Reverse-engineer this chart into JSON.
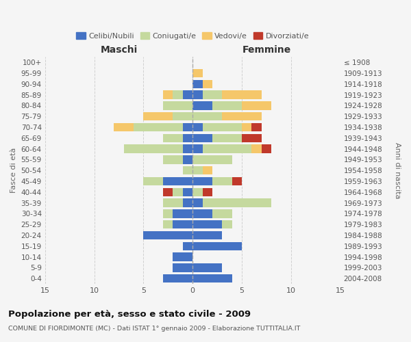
{
  "age_groups": [
    "0-4",
    "5-9",
    "10-14",
    "15-19",
    "20-24",
    "25-29",
    "30-34",
    "35-39",
    "40-44",
    "45-49",
    "50-54",
    "55-59",
    "60-64",
    "65-69",
    "70-74",
    "75-79",
    "80-84",
    "85-89",
    "90-94",
    "95-99",
    "100+"
  ],
  "birth_years": [
    "2004-2008",
    "1999-2003",
    "1994-1998",
    "1989-1993",
    "1984-1988",
    "1979-1983",
    "1974-1978",
    "1969-1973",
    "1964-1968",
    "1959-1963",
    "1954-1958",
    "1949-1953",
    "1944-1948",
    "1939-1943",
    "1934-1938",
    "1929-1933",
    "1924-1928",
    "1919-1923",
    "1914-1918",
    "1909-1913",
    "≤ 1908"
  ],
  "colors": {
    "celibi": "#4472c4",
    "coniugati": "#c5d99e",
    "vedovi": "#f5c76a",
    "divorziati": "#c0392b"
  },
  "males": {
    "celibi": [
      3,
      2,
      2,
      1,
      5,
      2,
      2,
      1,
      1,
      3,
      0,
      1,
      1,
      1,
      1,
      0,
      0,
      1,
      0,
      0,
      0
    ],
    "coniugati": [
      0,
      0,
      0,
      0,
      0,
      1,
      1,
      2,
      1,
      2,
      1,
      2,
      6,
      2,
      5,
      2,
      3,
      1,
      0,
      0,
      0
    ],
    "vedovi": [
      0,
      0,
      0,
      0,
      0,
      0,
      0,
      0,
      0,
      0,
      0,
      0,
      0,
      0,
      2,
      3,
      0,
      1,
      0,
      0,
      0
    ],
    "divorziati": [
      0,
      0,
      0,
      0,
      0,
      0,
      0,
      0,
      1,
      0,
      0,
      0,
      0,
      0,
      0,
      0,
      0,
      0,
      0,
      0,
      0
    ]
  },
  "females": {
    "celibi": [
      4,
      3,
      0,
      5,
      3,
      3,
      2,
      1,
      0,
      2,
      0,
      0,
      1,
      2,
      1,
      0,
      2,
      1,
      1,
      0,
      0
    ],
    "coniugati": [
      0,
      0,
      0,
      0,
      0,
      1,
      2,
      7,
      1,
      2,
      1,
      4,
      5,
      3,
      4,
      3,
      3,
      2,
      0,
      0,
      0
    ],
    "vedovi": [
      0,
      0,
      0,
      0,
      0,
      0,
      0,
      0,
      0,
      0,
      1,
      0,
      1,
      0,
      1,
      4,
      3,
      4,
      1,
      1,
      0
    ],
    "divorziati": [
      0,
      0,
      0,
      0,
      0,
      0,
      0,
      0,
      1,
      1,
      0,
      0,
      1,
      2,
      1,
      0,
      0,
      0,
      0,
      0,
      0
    ]
  },
  "xlim": 15,
  "title": "Popolazione per età, sesso e stato civile - 2009",
  "subtitle": "COMUNE DI FIORDIMONTE (MC) - Dati ISTAT 1° gennaio 2009 - Elaborazione TUTTITALIA.IT",
  "xlabel_left": "Maschi",
  "xlabel_right": "Femmine",
  "ylabel": "Fasce di età",
  "ylabel_right": "Anni di nascita",
  "legend_labels": [
    "Celibi/Nubili",
    "Coniugati/e",
    "Vedovi/e",
    "Divorziati/e"
  ],
  "bg_color": "#f5f5f5",
  "grid_color": "#cccccc"
}
